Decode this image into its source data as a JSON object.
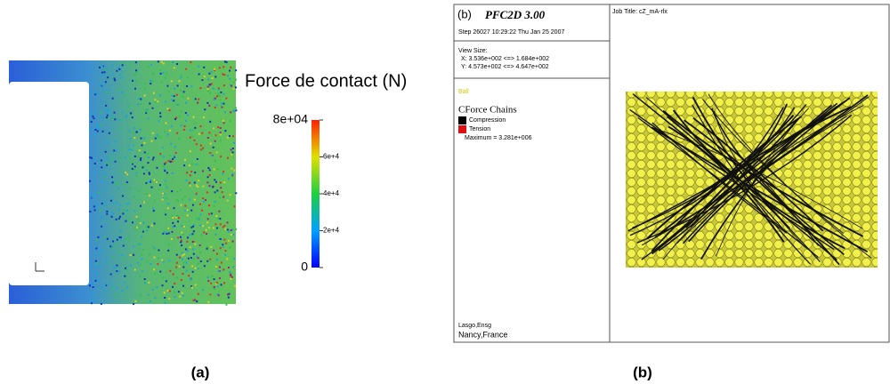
{
  "panel_a": {
    "title": "Force de contact (N)",
    "colorbar_labels": [
      "8e+04",
      "6e+4",
      "4e+4",
      "2e+4",
      "0"
    ],
    "caption": "(a)"
  },
  "panel_b": {
    "label": "(b)",
    "program": "PFC2D 3.00",
    "step": "Step 26027  10:29:22 Thu Jan 25 2007",
    "view_size": "View Size:",
    "view_x": "X: 3.536e+002 <=> 1.684e+002",
    "view_y": "Y: 4.573e+002 <=> 4.647e+002",
    "ball": "Ball",
    "legend_title": "CForce Chains",
    "legend_items": [
      "Compression",
      "Tension"
    ],
    "maximum": "Maximum = 3.281e+006",
    "job_title": "Job Title: cZ_mA-rlx",
    "footer": [
      "Lasgo,Ensg",
      "Nancy,France"
    ],
    "caption": "(b)"
  }
}
